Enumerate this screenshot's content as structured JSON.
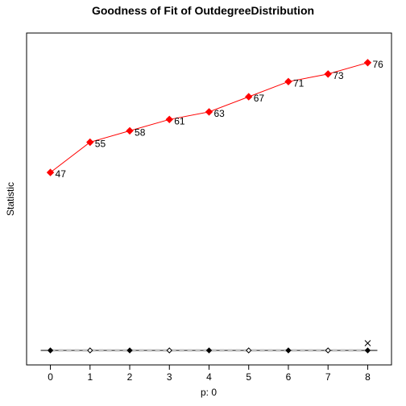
{
  "chart_data": {
    "type": "line",
    "title": "Goodness of Fit of OutdegreeDistribution",
    "xlabel": "p: 0",
    "ylabel": "Statistic",
    "x": [
      0,
      1,
      2,
      3,
      4,
      5,
      6,
      7,
      8
    ],
    "x_ticks": [
      "0",
      "1",
      "2",
      "3",
      "4",
      "5",
      "6",
      "7",
      "8"
    ],
    "xlim": [
      -0.6,
      8.6
    ],
    "ylim": [
      0,
      80
    ],
    "grid": false,
    "legend": "none",
    "series": [
      {
        "values": [
          47,
          55,
          58,
          61,
          63,
          67,
          71,
          73,
          76
        ],
        "labels": [
          "47",
          "55",
          "58",
          "61",
          "63",
          "67",
          "71",
          "73",
          "76"
        ],
        "color": "#ff0000",
        "marker": "diamond-filled"
      }
    ],
    "simulated_band": {
      "values": [
        0,
        0,
        0,
        0,
        0,
        0,
        0,
        0,
        0
      ],
      "median_color": "#c0c0c0",
      "whisker_color": "#000000",
      "outlier_x": 8,
      "outlier_marker": "x"
    }
  }
}
